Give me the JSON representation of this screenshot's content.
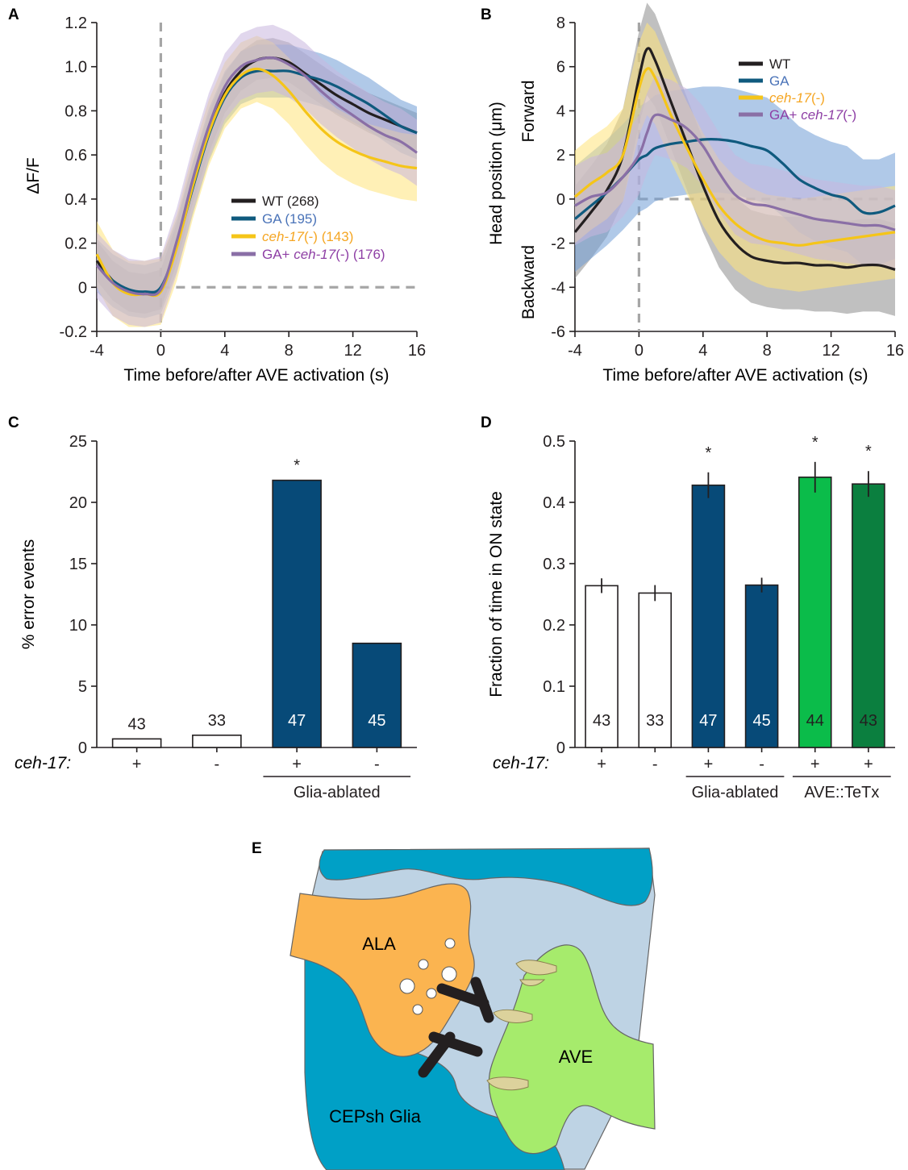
{
  "panels": {
    "A": {
      "letter": "A",
      "ylabel": "ΔF/F",
      "xlabel": "Time before/after AVE activation (s)",
      "legend": [
        {
          "name": "WT",
          "n": "(268)",
          "color": "#231f20",
          "label_color": "#231f20",
          "italic_part": ""
        },
        {
          "name": "GA",
          "n": "(195)",
          "color": "#0f5a7e",
          "label_color": "#4a73b8",
          "italic_part": ""
        },
        {
          "name": "",
          "italic_part": "ceh-17",
          "suffix": "(-)",
          "n": "(143)",
          "color": "#f5c518",
          "label_color": "#f5a623"
        },
        {
          "name": "GA+ ",
          "italic_part": "ceh-17",
          "suffix": "(-)",
          "n": "(176)",
          "color": "#8a6fa6",
          "label_color": "#8e3fa5"
        }
      ]
    },
    "B": {
      "letter": "B",
      "ylabel": "Head position (μm)",
      "forward_label": "Forward",
      "backward_label": "Backward",
      "xlabel": "Time before/after AVE activation (s)",
      "legend": [
        {
          "name": "WT",
          "italic_part": "",
          "suffix": "",
          "color": "#231f20",
          "label_color": "#231f20"
        },
        {
          "name": "GA",
          "italic_part": "",
          "suffix": "",
          "color": "#0f5a7e",
          "label_color": "#4a73b8"
        },
        {
          "name": "",
          "italic_part": "ceh-17",
          "suffix": "(-)",
          "color": "#f5c518",
          "label_color": "#f5a623"
        },
        {
          "name": "GA+ ",
          "italic_part": "ceh-17",
          "suffix": "(-)",
          "color": "#8a6fa6",
          "label_color": "#8e3fa5"
        }
      ]
    },
    "C": {
      "letter": "C",
      "ylabel": "% error events",
      "row_label": "ceh-17:",
      "group_label": "Glia-ablated"
    },
    "D": {
      "letter": "D",
      "ylabel": "Fraction of time in ON state",
      "row_label": "ceh-17:",
      "group_labels": [
        "Glia-ablated",
        "AVE::TeTx"
      ]
    },
    "E": {
      "letter": "E",
      "labels": {
        "ala": "ALA",
        "ave": "AVE",
        "glia": "CEPsh Glia"
      },
      "colors": {
        "glia": "#00a0c6",
        "neuropil": "#bed3e4",
        "ala": "#fbb450",
        "ave": "#a6eb6c",
        "synapse": "#231f20",
        "spine": "#dcd29c"
      }
    }
  },
  "chart_data": [
    {
      "panel": "A",
      "type": "line",
      "title": "",
      "xlabel": "Time before/after AVE activation (s)",
      "ylabel": "ΔF/F",
      "xlim": [
        -4,
        16
      ],
      "ylim": [
        -0.2,
        1.2
      ],
      "xticks": [
        -4,
        0,
        4,
        8,
        12,
        16
      ],
      "yticks": [
        -0.2,
        0,
        0.2,
        0.4,
        0.6,
        0.8,
        1.0,
        1.2
      ],
      "ytick_labels": [
        "-0.2",
        "0",
        "0.2",
        "0.4",
        "0.6",
        "0.8",
        "1.0",
        "1.2"
      ],
      "x": [
        -4,
        -3,
        -2,
        -1,
        0,
        1,
        2,
        3,
        4,
        5,
        6,
        7,
        8,
        9,
        10,
        11,
        12,
        13,
        14,
        15,
        16
      ],
      "series": [
        {
          "name": "WT (268)",
          "color": "#231f20",
          "band": "#8c8c8c",
          "err": 0.015,
          "values": [
            0.12,
            0.03,
            -0.02,
            -0.03,
            -0.01,
            0.2,
            0.47,
            0.7,
            0.88,
            0.98,
            1.03,
            1.04,
            1.02,
            0.97,
            0.92,
            0.87,
            0.83,
            0.79,
            0.76,
            0.73,
            0.7
          ]
        },
        {
          "name": "GA (195)",
          "color": "#0f5a7e",
          "band": "#6f9dd5",
          "err": 0.02,
          "values": [
            0.1,
            0.03,
            -0.01,
            -0.02,
            0.0,
            0.19,
            0.45,
            0.69,
            0.86,
            0.95,
            0.98,
            0.98,
            0.98,
            0.96,
            0.94,
            0.91,
            0.87,
            0.83,
            0.78,
            0.73,
            0.7
          ]
        },
        {
          "name": "ceh-17(-) (143)",
          "color": "#f5c518",
          "band": "#ffe37a",
          "err": 0.025,
          "values": [
            0.15,
            0.02,
            -0.03,
            -0.03,
            -0.02,
            0.18,
            0.46,
            0.7,
            0.87,
            0.96,
            0.99,
            0.96,
            0.89,
            0.8,
            0.72,
            0.66,
            0.62,
            0.59,
            0.57,
            0.55,
            0.54
          ]
        },
        {
          "name": "GA+ ceh-17(-) (176)",
          "color": "#8a6fa6",
          "band": "#c9b6de",
          "err": 0.025,
          "values": [
            0.1,
            0.02,
            -0.02,
            -0.03,
            -0.01,
            0.21,
            0.49,
            0.73,
            0.91,
            1.0,
            1.03,
            1.04,
            1.01,
            0.96,
            0.89,
            0.83,
            0.78,
            0.73,
            0.69,
            0.66,
            0.61
          ]
        }
      ]
    },
    {
      "panel": "B",
      "type": "line",
      "title": "",
      "xlabel": "Time before/after AVE activation (s)",
      "ylabel": "Head position (μm)",
      "xlim": [
        -4,
        16
      ],
      "ylim": [
        -6,
        8
      ],
      "xticks": [
        -4,
        0,
        4,
        8,
        12,
        16
      ],
      "yticks": [
        -6,
        -4,
        -2,
        0,
        2,
        4,
        6,
        8
      ],
      "x": [
        -4,
        -3,
        -2,
        -1,
        0,
        0.5,
        1,
        2,
        3,
        4,
        5,
        6,
        7,
        8,
        9,
        10,
        11,
        12,
        13,
        14,
        15,
        16
      ],
      "series": [
        {
          "name": "WT",
          "color": "#231f20",
          "band": "#8c8c8c",
          "err": 0.35,
          "values": [
            -1.5,
            -0.6,
            0.4,
            2.0,
            5.5,
            6.8,
            6.3,
            4.4,
            2.5,
            0.6,
            -1.0,
            -2.0,
            -2.6,
            -2.8,
            -2.9,
            -2.9,
            -3.0,
            -3.0,
            -3.1,
            -3.0,
            -3.0,
            -3.2
          ]
        },
        {
          "name": "GA",
          "color": "#0f5a7e",
          "band": "#6f9dd5",
          "err": 0.4,
          "values": [
            -0.9,
            -0.3,
            0.3,
            1.0,
            1.8,
            2.0,
            2.3,
            2.5,
            2.6,
            2.7,
            2.7,
            2.6,
            2.4,
            2.2,
            1.6,
            0.9,
            0.5,
            0.2,
            0.0,
            -0.6,
            -0.6,
            -0.3
          ]
        },
        {
          "name": "ceh-17(-)",
          "color": "#f5c518",
          "band": "#ffe37a",
          "err": 0.35,
          "values": [
            0.1,
            0.7,
            1.2,
            2.0,
            5.0,
            5.9,
            5.5,
            3.8,
            2.3,
            0.9,
            -0.3,
            -1.1,
            -1.6,
            -1.9,
            -2.0,
            -2.1,
            -2.0,
            -1.9,
            -1.8,
            -1.7,
            -1.6,
            -1.5
          ]
        },
        {
          "name": "GA+ ceh-17(-)",
          "color": "#8a6fa6",
          "band": "#c9b6de",
          "err": 0.3,
          "values": [
            -0.3,
            0.1,
            0.3,
            1.0,
            2.0,
            3.0,
            3.8,
            3.6,
            3.2,
            2.4,
            1.2,
            0.2,
            -0.2,
            -0.3,
            -0.5,
            -0.7,
            -0.9,
            -1.0,
            -1.1,
            -1.2,
            -1.2,
            -1.4
          ]
        }
      ]
    },
    {
      "panel": "C",
      "type": "bar",
      "title": "",
      "xlabel": "",
      "ylabel": "% error events",
      "ylim": [
        0,
        25
      ],
      "yticks": [
        0,
        5,
        10,
        15,
        20,
        25
      ],
      "categories": [
        "+",
        "-",
        "+",
        "-"
      ],
      "values": [
        0.7,
        1.0,
        21.8,
        8.5
      ],
      "n": [
        "43",
        "33",
        "47",
        "45"
      ],
      "fill": [
        "#ffffff",
        "#ffffff",
        "#074a78",
        "#074a78"
      ],
      "n_color": [
        "#231f20",
        "#231f20",
        "#ffffff",
        "#ffffff"
      ],
      "significance": [
        "",
        "",
        "*",
        ""
      ],
      "groups": [
        {
          "label": "Glia-ablated",
          "from": 2,
          "to": 3
        }
      ]
    },
    {
      "panel": "D",
      "type": "bar",
      "title": "",
      "xlabel": "",
      "ylabel": "Fraction of time in ON state",
      "ylim": [
        0,
        0.5
      ],
      "yticks": [
        0,
        0.1,
        0.2,
        0.3,
        0.4,
        0.5
      ],
      "ytick_labels": [
        "0",
        "0.1",
        "0.2",
        "0.3",
        "0.4",
        "0.5"
      ],
      "categories": [
        "+",
        "-",
        "+",
        "-",
        "+",
        "+"
      ],
      "values": [
        0.264,
        0.252,
        0.428,
        0.265,
        0.441,
        0.43
      ],
      "errors": [
        0.012,
        0.013,
        0.021,
        0.012,
        0.025,
        0.021
      ],
      "n": [
        "43",
        "33",
        "47",
        "45",
        "44",
        "43"
      ],
      "fill": [
        "#ffffff",
        "#ffffff",
        "#074a78",
        "#074a78",
        "#0bbc4a",
        "#0b7f3f"
      ],
      "n_color": [
        "#231f20",
        "#231f20",
        "#ffffff",
        "#ffffff",
        "#231f20",
        "#231f20"
      ],
      "significance": [
        "",
        "",
        "*",
        "",
        "*",
        "*"
      ],
      "groups": [
        {
          "label": "Glia-ablated",
          "from": 2,
          "to": 3
        },
        {
          "label": "AVE::TeTx",
          "from": 4,
          "to": 5
        }
      ]
    }
  ]
}
